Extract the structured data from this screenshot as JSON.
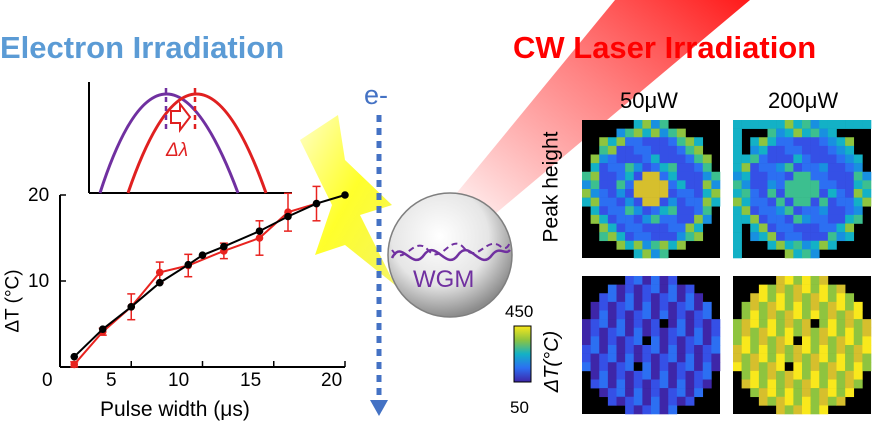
{
  "titles": {
    "electron": "Electron Irradiation",
    "laser": "CW Laser Irradiation",
    "electron_color": "#5b9bd5",
    "laser_color": "#ff0000"
  },
  "electron_beam": {
    "label": "e-",
    "color": "#4472c4"
  },
  "inset": {
    "shift_label": "Δλ",
    "curve_colors": [
      "#7030a0",
      "#e02020"
    ]
  },
  "resonator": {
    "label": "WGM",
    "mode_color": "#7030a0"
  },
  "chart_data": {
    "type": "line",
    "xlabel": "Pulse width (μs)",
    "ylabel": "ΔT (°C)",
    "xlim": [
      0,
      20
    ],
    "ylim": [
      0,
      20
    ],
    "xticks": [
      "0",
      "5",
      "10",
      "15",
      "20"
    ],
    "yticks": [
      "10",
      "20"
    ],
    "series": [
      {
        "color": "#000000",
        "x": [
          1,
          3,
          5,
          7,
          9,
          10,
          11.5,
          14,
          16,
          18,
          20
        ],
        "y": [
          1.2,
          4.4,
          7.0,
          9.8,
          11.9,
          13.0,
          14.0,
          15.8,
          17.5,
          19.0,
          20.0
        ]
      },
      {
        "color": "#e8231f",
        "x": [
          1,
          3,
          5,
          7,
          9,
          11.5,
          14,
          16,
          18
        ],
        "y": [
          0.3,
          4.1,
          7.0,
          11.0,
          11.8,
          13.5,
          15.0,
          18.0,
          19.0
        ],
        "err": [
          0.3,
          0.4,
          1.5,
          1.2,
          1.3,
          0.9,
          2.0,
          2.2,
          2.0
        ]
      }
    ]
  },
  "maps": {
    "col_labels": [
      "50μW",
      "200μW"
    ],
    "row_label_top": "Peak height",
    "row_label_bottom": "ΔT(°C)",
    "colorbar_max": "450",
    "colorbar_min": "50"
  }
}
